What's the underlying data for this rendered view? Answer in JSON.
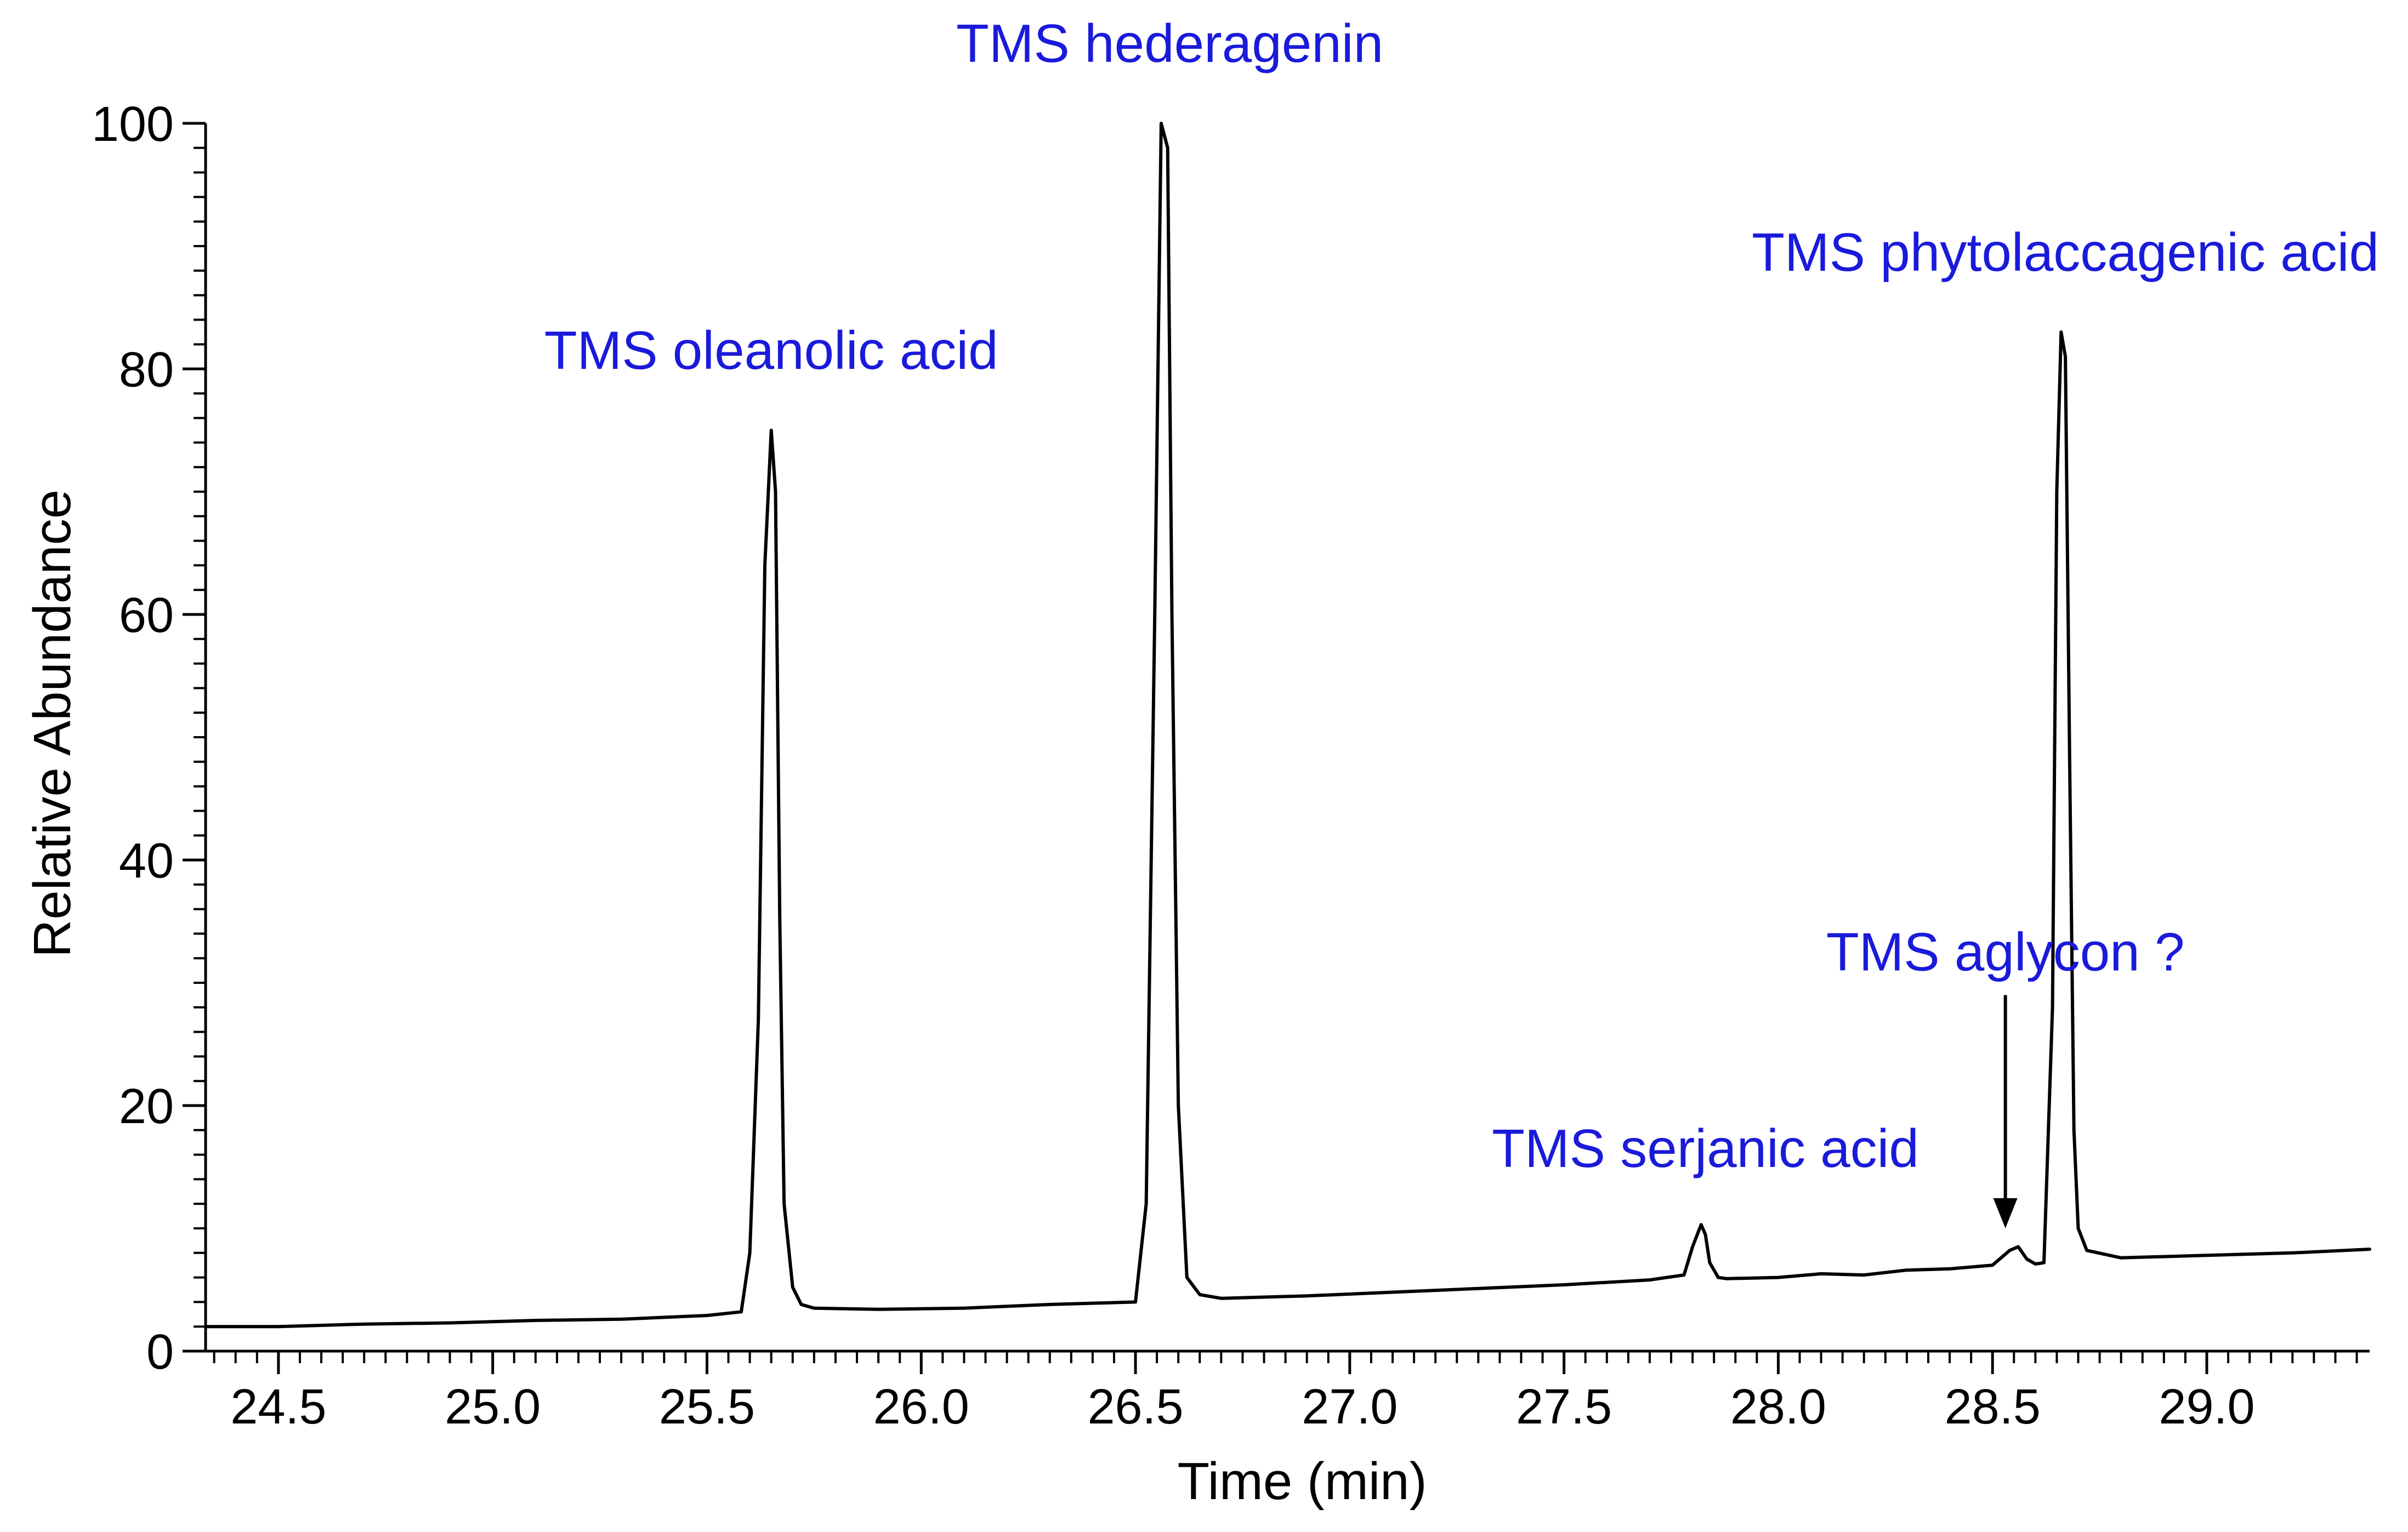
{
  "chart_data": {
    "type": "line",
    "title": "",
    "xlabel": "Time (min)",
    "ylabel": "Relative Abundance",
    "xlim": [
      24.33,
      29.38
    ],
    "ylim": [
      0,
      100
    ],
    "x_ticks": [
      24.5,
      25.0,
      25.5,
      26.0,
      26.5,
      27.0,
      27.5,
      28.0,
      28.5,
      29.0
    ],
    "x_tick_labels": [
      "24.5",
      "25.0",
      "25.5",
      "26.0",
      "26.5",
      "27.0",
      "27.5",
      "28.0",
      "28.5",
      "29.0"
    ],
    "y_ticks": [
      0,
      20,
      40,
      60,
      80,
      100
    ],
    "y_tick_labels": [
      "0",
      "20",
      "40",
      "60",
      "80",
      "100"
    ],
    "grid": false,
    "legend": "none",
    "line_color": "#000000",
    "annotation_color": "#1a1adb",
    "series": [
      {
        "x": [
          24.33,
          24.5,
          24.7,
          24.9,
          25.1,
          25.3,
          25.5,
          25.58,
          25.6,
          25.62,
          25.635,
          25.65,
          25.66,
          25.67,
          25.68,
          25.7,
          25.72,
          25.75,
          25.9,
          26.1,
          26.3,
          26.5,
          26.525,
          26.545,
          26.56,
          26.575,
          26.585,
          26.6,
          26.62,
          26.65,
          26.7,
          26.9,
          27.1,
          27.3,
          27.5,
          27.7,
          27.78,
          27.8,
          27.82,
          27.83,
          27.84,
          27.86,
          27.88,
          28.0,
          28.1,
          28.2,
          28.3,
          28.4,
          28.5,
          28.54,
          28.56,
          28.58,
          28.6,
          28.62,
          28.64,
          28.65,
          28.66,
          28.67,
          28.68,
          28.69,
          28.7,
          28.72,
          28.8,
          29.0,
          29.2,
          29.38
        ],
        "y": [
          2.0,
          2.0,
          2.2,
          2.3,
          2.5,
          2.6,
          2.9,
          3.2,
          8,
          27,
          64,
          75,
          70,
          35,
          12,
          5.2,
          3.8,
          3.5,
          3.4,
          3.5,
          3.8,
          4.0,
          12,
          60,
          100,
          98,
          60,
          20,
          6,
          4.6,
          4.3,
          4.5,
          4.8,
          5.1,
          5.4,
          5.8,
          6.2,
          8.5,
          10.3,
          9.5,
          7.2,
          6.0,
          5.9,
          6.0,
          6.3,
          6.2,
          6.6,
          6.7,
          7.0,
          8.2,
          8.5,
          7.5,
          7.1,
          7.2,
          28,
          70,
          83,
          81,
          48,
          18,
          10,
          8.2,
          7.6,
          7.8,
          8.0,
          8.3
        ]
      }
    ],
    "annotations": [
      {
        "text": "TMS oleanolic acid",
        "x": 25.65,
        "y": 80
      },
      {
        "text": "TMS hederagenin",
        "x": 26.58,
        "y": 105
      },
      {
        "text": "TMS serjanic acid",
        "x": 27.83,
        "y": 15
      },
      {
        "text": "TMS aglycon ?",
        "x": 28.53,
        "y": 31
      },
      {
        "text": "TMS phytolaccagenic acid",
        "x": 28.67,
        "y": 88
      }
    ],
    "arrow": {
      "x": 28.53,
      "y_from": 29,
      "y_to": 10
    }
  }
}
